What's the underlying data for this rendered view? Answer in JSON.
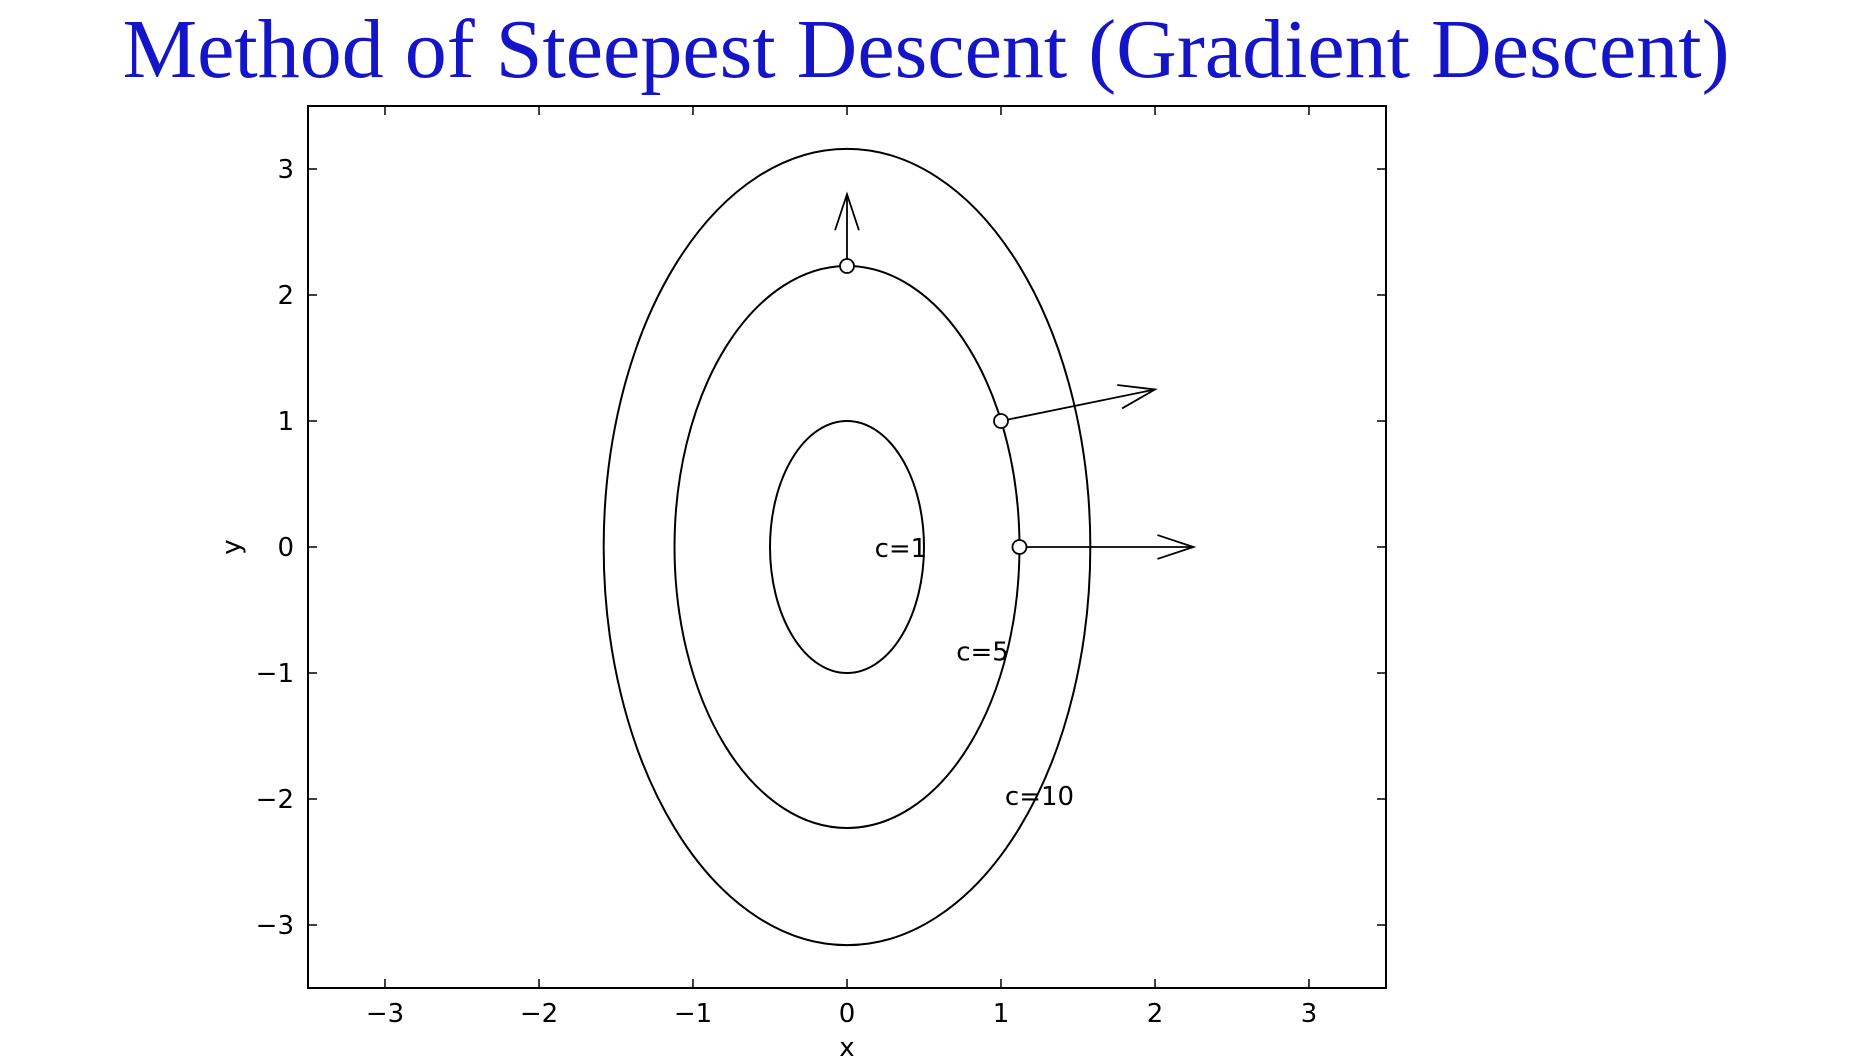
{
  "slide": {
    "title": "Method of Steepest Descent (Gradient Descent)",
    "title_color": "#1414c8"
  },
  "chart_data": {
    "type": "line",
    "title": "",
    "xlabel": "x",
    "ylabel": "y",
    "xlim": [
      -3.5,
      3.5
    ],
    "ylim": [
      -3.5,
      3.5
    ],
    "xticks": [
      -3,
      -2,
      -1,
      0,
      1,
      2,
      3
    ],
    "yticks": [
      -3,
      -2,
      -1,
      0,
      1,
      2,
      3
    ],
    "tick_labels": {
      "x": [
        "-3",
        "-2",
        "-1",
        "0",
        "1",
        "2",
        "3"
      ],
      "y": [
        "-3",
        "-2",
        "-1",
        "0",
        "1",
        "2",
        "3"
      ]
    },
    "grid": false,
    "series": [
      {
        "name": "c=1",
        "shape": "ellipse",
        "center": [
          0,
          0
        ],
        "semi_x": 0.5,
        "semi_y": 1.0,
        "label": "c=1",
        "label_pos": [
          0.35,
          0.0
        ]
      },
      {
        "name": "c=5",
        "shape": "ellipse",
        "center": [
          0,
          0
        ],
        "semi_x": 1.12,
        "semi_y": 2.23,
        "label": "c=5",
        "label_pos": [
          0.88,
          -0.82
        ]
      },
      {
        "name": "c=10",
        "shape": "ellipse",
        "center": [
          0,
          0
        ],
        "semi_x": 1.58,
        "semi_y": 3.16,
        "label": "c=10",
        "label_pos": [
          1.25,
          -1.97
        ]
      }
    ],
    "points": [
      {
        "x": 0.0,
        "y": 2.23
      },
      {
        "x": 1.0,
        "y": 1.0
      },
      {
        "x": 1.12,
        "y": 0.0
      }
    ],
    "gradient_arrows": [
      {
        "from": [
          0.0,
          2.23
        ],
        "to": [
          0.0,
          2.8
        ]
      },
      {
        "from": [
          1.0,
          1.0
        ],
        "to": [
          2.0,
          1.25
        ]
      },
      {
        "from": [
          1.12,
          0.0
        ],
        "to": [
          2.25,
          0.0
        ]
      }
    ],
    "colors": {
      "line": "#000000",
      "background": "#ffffff"
    }
  }
}
